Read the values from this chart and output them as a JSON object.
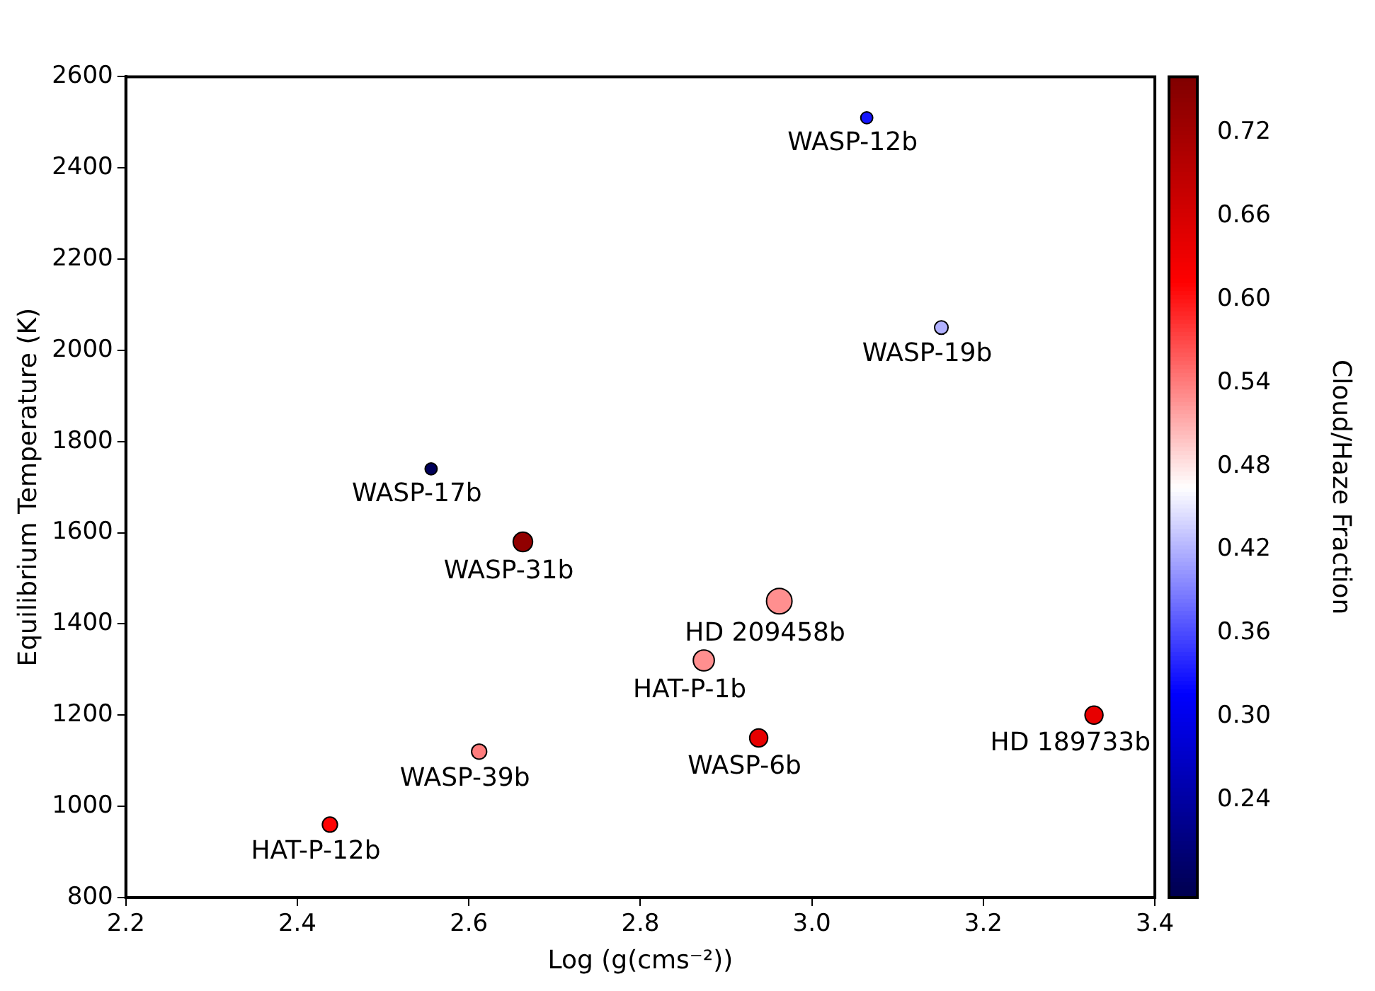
{
  "chart_data": {
    "type": "bubble",
    "xlabel": "Log (g(cms⁻²))",
    "ylabel": "Equilibrium Temperature (K)",
    "clabel": "Cloud/Haze Fraction",
    "x": [
      3.064,
      3.151,
      2.556,
      2.663,
      2.962,
      2.874,
      2.938,
      3.329,
      2.612,
      2.438
    ],
    "values": [
      2510,
      2050,
      1740,
      1580,
      1450,
      1320,
      1150,
      1200,
      1120,
      960
    ],
    "cvalues": [
      0.33,
      0.42,
      0.18,
      0.74,
      0.53,
      0.53,
      0.64,
      0.64,
      0.54,
      0.61
    ],
    "sizes": [
      0.22,
      0.28,
      0.22,
      0.58,
      1,
      0.68,
      0.5,
      0.5,
      0.35,
      0.35
    ],
    "annotations": [
      {
        "text": "WASP-12b",
        "x": 3.064,
        "y": 2510
      },
      {
        "text": "WASP-19b",
        "x": 3.151,
        "y": 2050
      },
      {
        "text": "WASP-17b",
        "x": 2.556,
        "y": 1740
      },
      {
        "text": "WASP-31b",
        "x": 2.663,
        "y": 1580
      },
      {
        "text": "HD 209458b",
        "x": 2.962,
        "y": 1450
      },
      {
        "text": "HAT-P-1b",
        "x": 2.874,
        "y": 1320
      },
      {
        "text": "WASP-6b",
        "x": 2.938,
        "y": 1150
      },
      {
        "text": "HD 189733b",
        "x": 3.329,
        "y": 1200
      },
      {
        "text": "WASP-39b",
        "x": 2.612,
        "y": 1120
      },
      {
        "text": "HAT-P-12b",
        "x": 2.438,
        "y": 960
      }
    ],
    "xlim": [
      2.2,
      3.4
    ],
    "xticks": [
      2.2,
      2.4,
      2.6,
      2.8,
      {
        "value": 3,
        "label": "3.0"
      },
      3.2,
      3.4
    ],
    "ylim": [
      800,
      2600
    ],
    "yticks": [
      800,
      1000,
      1200,
      1400,
      1600,
      1800,
      2000,
      2200,
      2400,
      2600
    ],
    "clim": [
      0.17,
      0.76
    ],
    "cticks": [
      0.24,
      {
        "value": 0.3,
        "label": "0.30"
      },
      0.36,
      0.42,
      0.48,
      0.54,
      {
        "value": 0.6,
        "label": "0.60"
      },
      0.66,
      0.72
    ],
    "grid": false,
    "legend": false,
    "marker": "circle"
  }
}
